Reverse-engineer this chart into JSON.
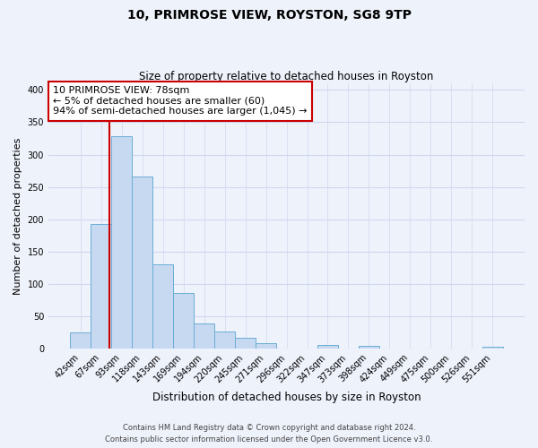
{
  "title": "10, PRIMROSE VIEW, ROYSTON, SG8 9TP",
  "subtitle": "Size of property relative to detached houses in Royston",
  "xlabel": "Distribution of detached houses by size in Royston",
  "ylabel": "Number of detached properties",
  "bar_labels": [
    "42sqm",
    "67sqm",
    "93sqm",
    "118sqm",
    "143sqm",
    "169sqm",
    "194sqm",
    "220sqm",
    "245sqm",
    "271sqm",
    "296sqm",
    "322sqm",
    "347sqm",
    "373sqm",
    "398sqm",
    "424sqm",
    "449sqm",
    "475sqm",
    "500sqm",
    "526sqm",
    "551sqm"
  ],
  "bar_values": [
    25,
    193,
    328,
    266,
    130,
    86,
    38,
    26,
    17,
    8,
    0,
    0,
    5,
    0,
    4,
    0,
    0,
    0,
    0,
    0,
    2
  ],
  "bar_color": "#c6d9f0",
  "bar_edge_color": "#6baed6",
  "property_line_label": "10 PRIMROSE VIEW: 78sqm",
  "annotation_line1": "← 5% of detached houses are smaller (60)",
  "annotation_line2": "94% of semi-detached houses are larger (1,045) →",
  "annotation_box_color": "#ffffff",
  "annotation_box_edge": "#cc0000",
  "line_color": "#cc0000",
  "ylim": [
    0,
    410
  ],
  "yticks": [
    0,
    50,
    100,
    150,
    200,
    250,
    300,
    350,
    400
  ],
  "footer1": "Contains HM Land Registry data © Crown copyright and database right 2024.",
  "footer2": "Contains public sector information licensed under the Open Government Licence v3.0.",
  "bg_color": "#eef2fb",
  "grid_color": "#d0d8ee",
  "title_fontsize": 10,
  "subtitle_fontsize": 8.5,
  "ylabel_fontsize": 8,
  "xlabel_fontsize": 8.5,
  "tick_fontsize": 7,
  "annotation_fontsize": 8,
  "footer_fontsize": 6
}
